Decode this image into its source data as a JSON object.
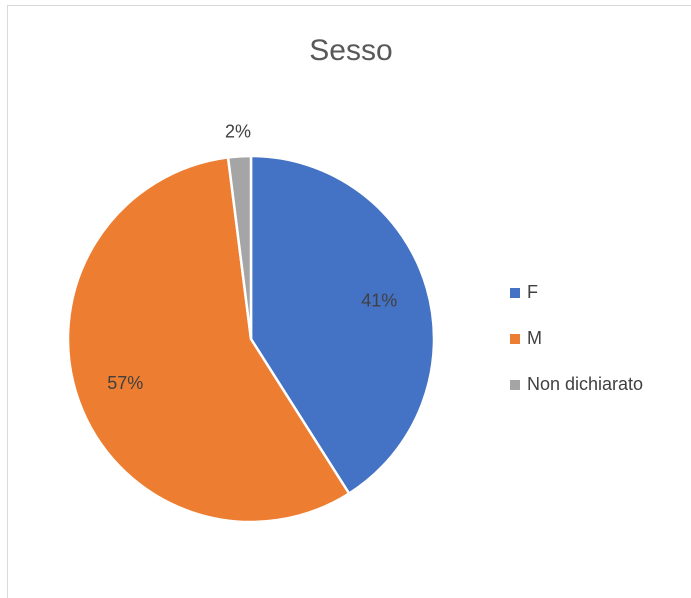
{
  "chart_data": {
    "type": "pie",
    "title": "Sesso",
    "categories": [
      "F",
      "M",
      "Non dichiarato"
    ],
    "values": [
      41,
      57,
      2
    ],
    "value_labels": [
      "41%",
      "57%",
      "2%"
    ],
    "colors": [
      "#4472c4",
      "#ed7d31",
      "#a5a5a5"
    ],
    "legend": "right"
  }
}
